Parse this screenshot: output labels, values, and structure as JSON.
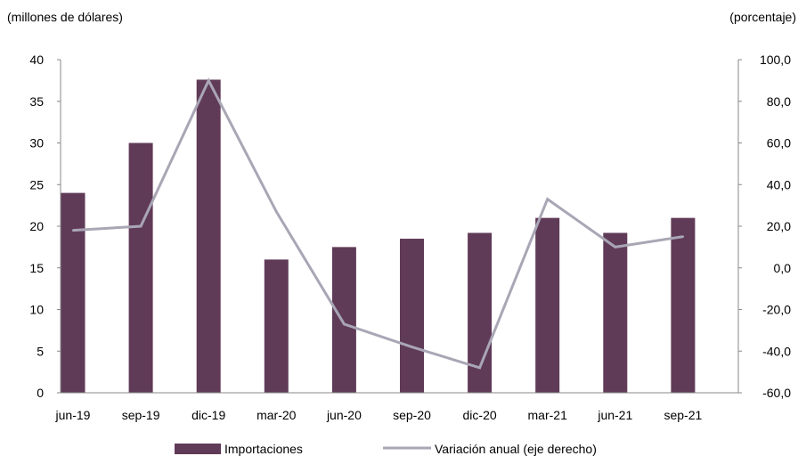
{
  "chart_data": {
    "type": "bar",
    "categories": [
      "jun-19",
      "sep-19",
      "dic-19",
      "mar-20",
      "jun-20",
      "sep-20",
      "dic-20",
      "mar-21",
      "jun-21",
      "sep-21"
    ],
    "left_axis_label": "(millones de dólares)",
    "right_axis_label": "(porcentaje)",
    "ylim_left": [
      0,
      40
    ],
    "ylim_right": [
      -60,
      100
    ],
    "yticks_left": [
      "0",
      "5",
      "10",
      "15",
      "20",
      "25",
      "30",
      "35",
      "40"
    ],
    "yticks_right": [
      "-60,0",
      "-40,0",
      "-20,0",
      "0,0",
      "20,0",
      "40,0",
      "60,0",
      "80,0",
      "100,0"
    ],
    "grid": false,
    "legend_position": "bottom",
    "series": [
      {
        "name": "Importaciones",
        "type": "bar",
        "axis": "left",
        "color": "#603b58",
        "values": [
          24,
          30,
          37.6,
          16,
          17.5,
          18.5,
          19.2,
          21,
          19.2,
          21
        ]
      },
      {
        "name": "Variación anual (eje derecho)",
        "type": "line",
        "axis": "right",
        "color": "#a9a6b5",
        "values": [
          18,
          20,
          90,
          27,
          -27,
          -38,
          -48,
          33,
          10,
          15
        ]
      }
    ]
  }
}
